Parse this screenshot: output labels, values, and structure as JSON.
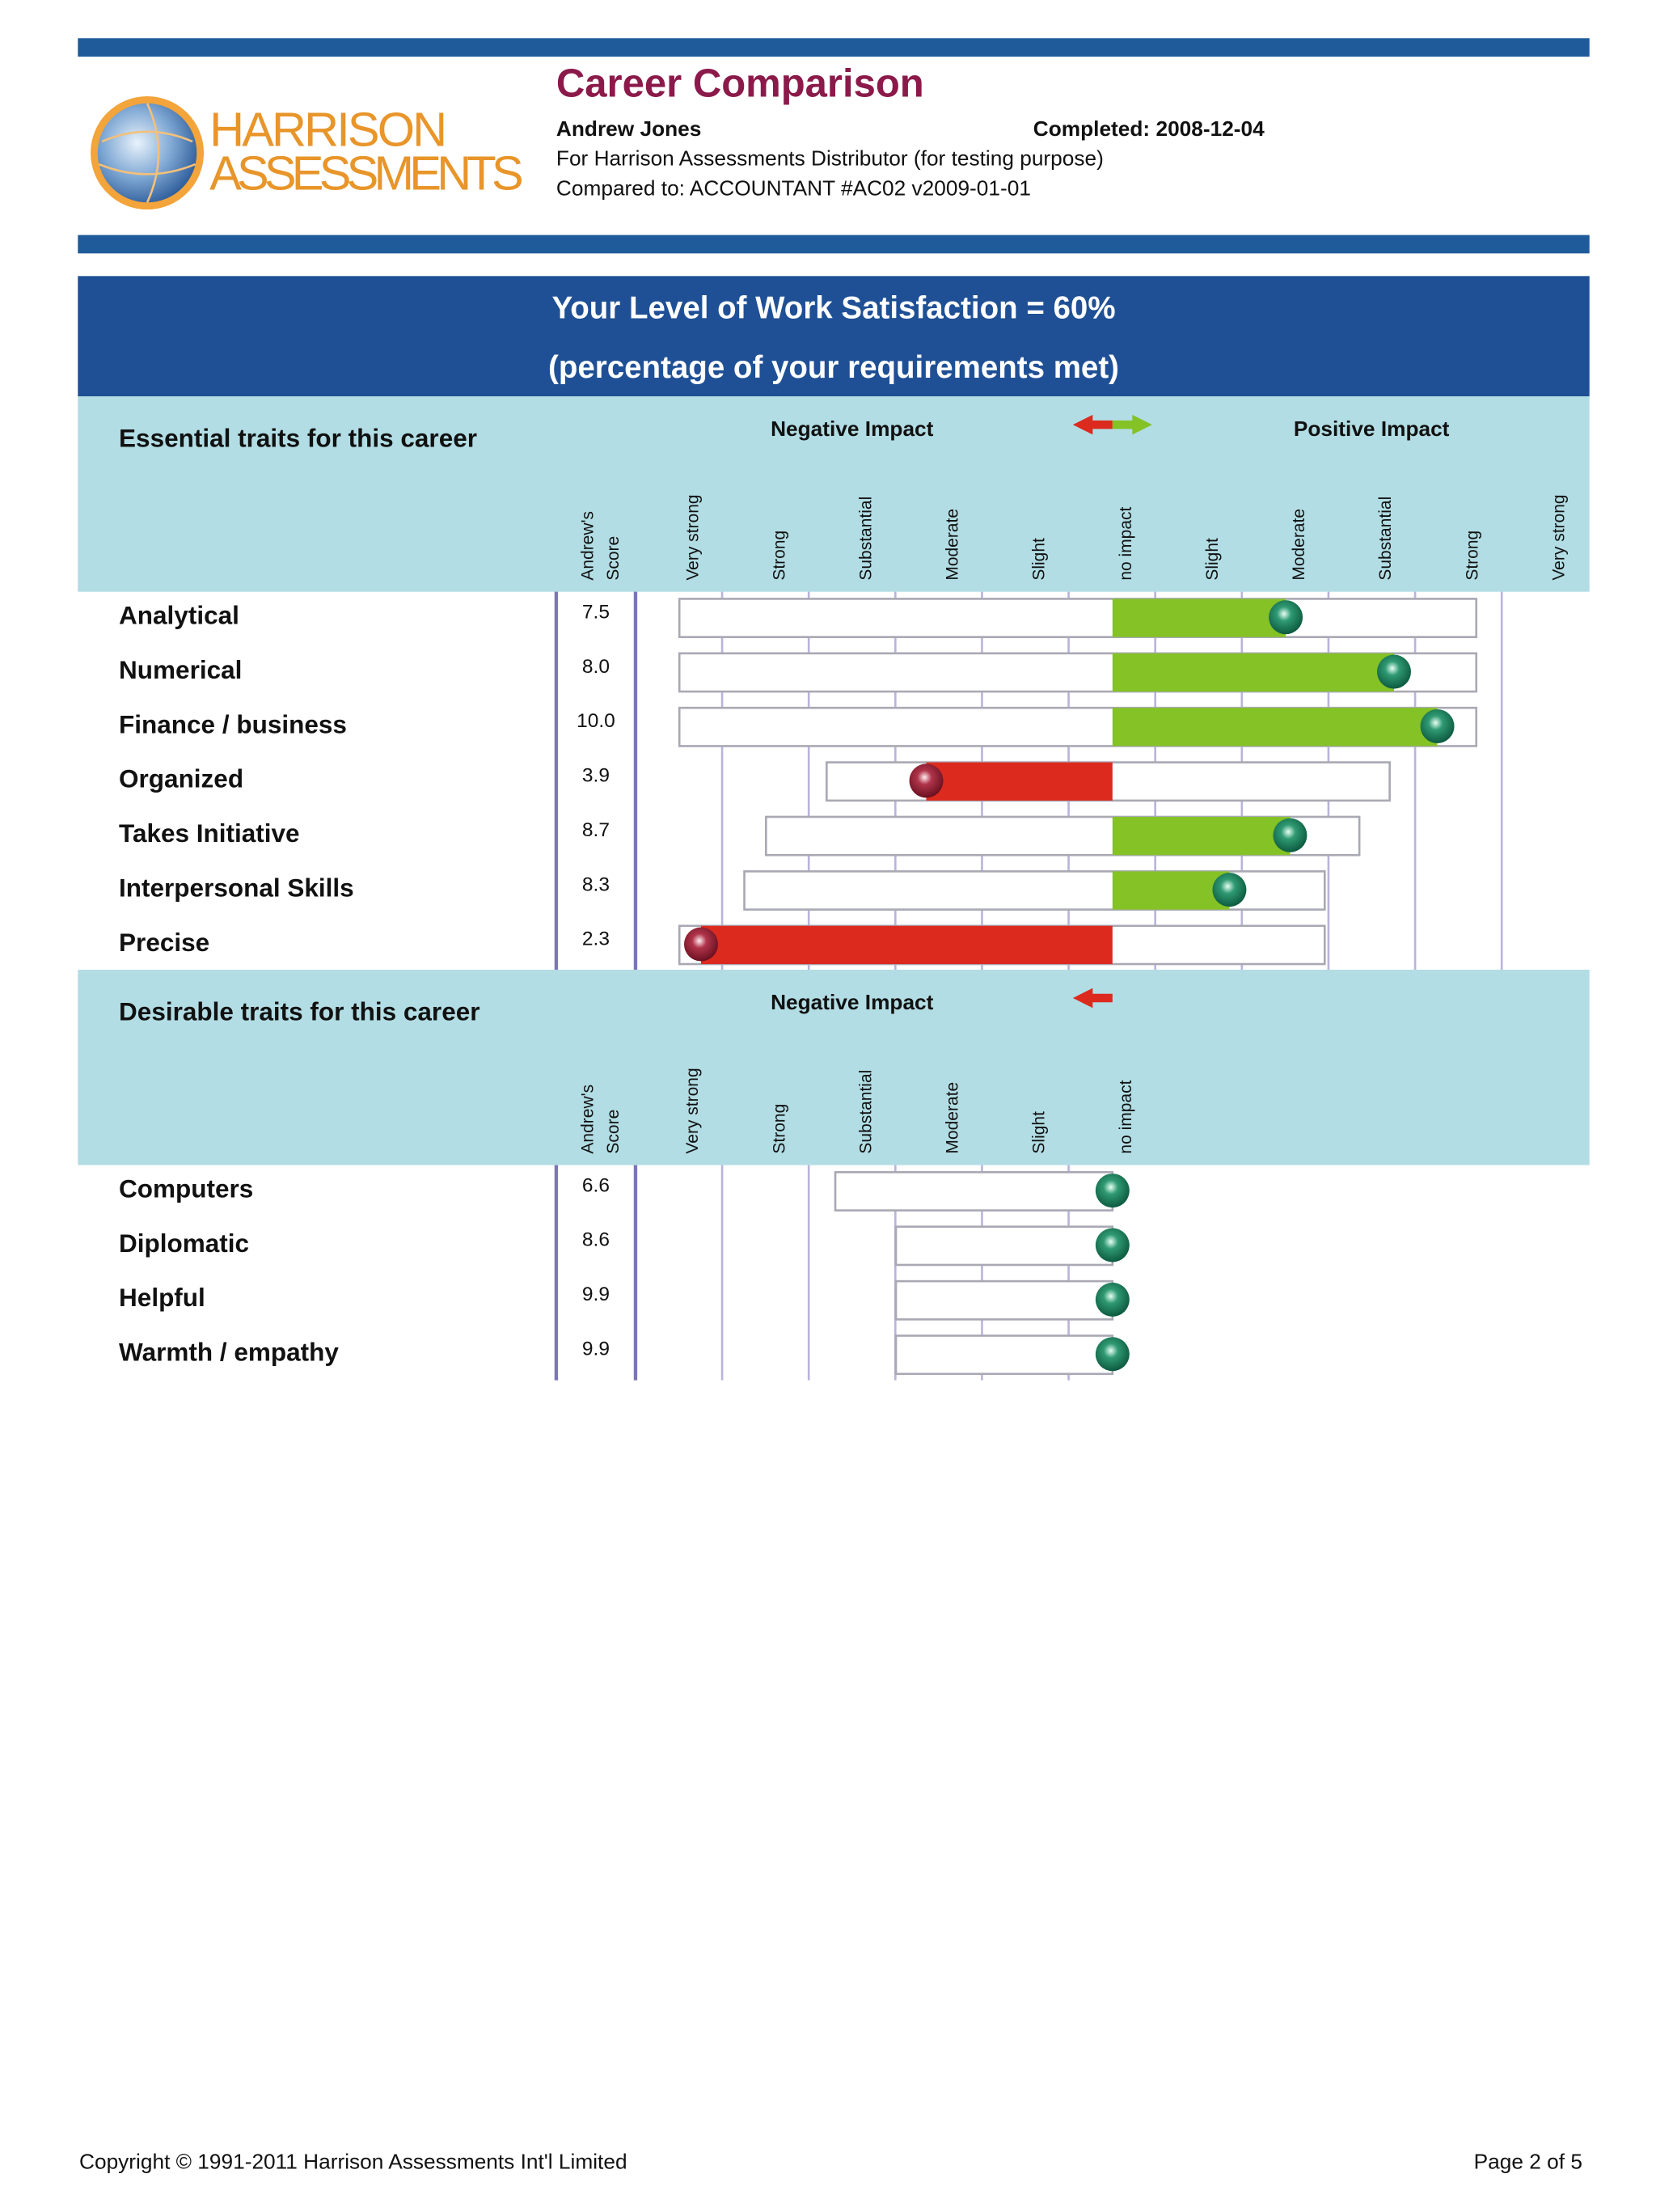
{
  "header": {
    "logo_line1": "HARRISON",
    "logo_line2": "ASSESSMENTS",
    "title": "Career Comparison",
    "name": "Andrew Jones",
    "completed": "Completed: 2008-12-04",
    "for": "For Harrison Assessments Distributor (for testing purpose)",
    "compared": "Compared to: ACCOUNTANT #AC02 v2009-01-01"
  },
  "banner": {
    "line1": "Your Level of Work Satisfaction = 60%",
    "line2": "(percentage of your requirements met)"
  },
  "sections": [
    {
      "title": "Essential traits for this career",
      "negative_label": "Negative Impact",
      "positive_label": "Positive Impact",
      "score_header": [
        "Andrew's",
        "Score"
      ],
      "columns": [
        "Very strong",
        "Strong",
        "Substantial",
        "Moderate",
        "Slight",
        "no impact",
        "Slight",
        "Moderate",
        "Substantial",
        "Strong",
        "Very strong"
      ],
      "rows": [
        {
          "trait": "Analytical",
          "score": "7.5",
          "range": [
            -5.0,
            4.2
          ],
          "impact": 2.0
        },
        {
          "trait": "Numerical",
          "score": "8.0",
          "range": [
            -5.0,
            4.2
          ],
          "impact": 3.25
        },
        {
          "trait": "Finance / business",
          "score": "10.0",
          "range": [
            -5.0,
            4.2
          ],
          "impact": 3.75
        },
        {
          "trait": "Organized",
          "score": "3.9",
          "range": [
            -3.3,
            3.2
          ],
          "impact": -2.15
        },
        {
          "trait": "Takes Initiative",
          "score": "8.7",
          "range": [
            -4.0,
            2.85
          ],
          "impact": 2.05
        },
        {
          "trait": "Interpersonal Skills",
          "score": "8.3",
          "range": [
            -4.25,
            2.45
          ],
          "impact": 1.35
        },
        {
          "trait": "Precise",
          "score": "2.3",
          "range": [
            -5.0,
            2.45
          ],
          "impact": -4.75
        }
      ]
    },
    {
      "title": "Desirable traits for this career",
      "negative_label": "Negative Impact",
      "score_header": [
        "Andrew's",
        "Score"
      ],
      "columns": [
        "Very strong",
        "Strong",
        "Substantial",
        "Moderate",
        "Slight",
        "no impact"
      ],
      "rows": [
        {
          "trait": "Computers",
          "score": "6.6",
          "range": [
            -3.2,
            0
          ],
          "impact": 0
        },
        {
          "trait": "Diplomatic",
          "score": "8.6",
          "range": [
            -2.5,
            0
          ],
          "impact": 0
        },
        {
          "trait": "Helpful",
          "score": "9.9",
          "range": [
            -2.5,
            0
          ],
          "impact": 0
        },
        {
          "trait": "Warmth / empathy",
          "score": "9.9",
          "range": [
            -2.5,
            0
          ],
          "impact": 0
        }
      ]
    }
  ],
  "footer": {
    "copyright": "Copyright © 1991-2011 Harrison Assessments Int'l Limited",
    "page": "Page 2 of 5"
  }
}
